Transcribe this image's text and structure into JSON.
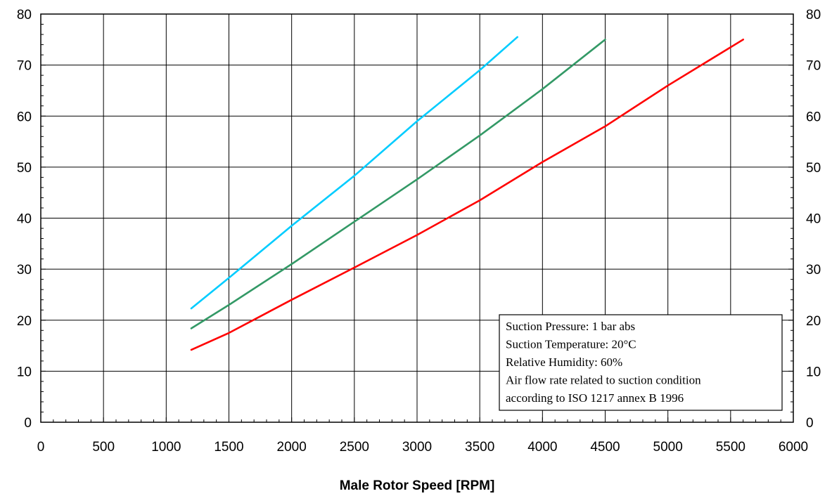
{
  "chart_data": {
    "type": "line",
    "title": "",
    "xlabel": "Male Rotor Speed [RPM]",
    "ylabel": "",
    "xlim": [
      0,
      6000
    ],
    "ylim": [
      0,
      80
    ],
    "x_ticks": [
      "0",
      "500",
      "1000",
      "1500",
      "2000",
      "2500",
      "3000",
      "3500",
      "4000",
      "4500",
      "5000",
      "5500",
      "6000"
    ],
    "y_ticks": [
      "0",
      "10",
      "20",
      "30",
      "40",
      "50",
      "60",
      "70",
      "80"
    ],
    "grid": true,
    "legend": "none",
    "series": [
      {
        "color": "#00ccff",
        "x": [
          1200,
          1500,
          2000,
          2500,
          3000,
          3500,
          3800
        ],
        "y": [
          22.3,
          28.3,
          38.5,
          48.3,
          59.0,
          69.0,
          75.5
        ]
      },
      {
        "color": "#339966",
        "x": [
          1200,
          1500,
          2000,
          2500,
          3000,
          3500,
          4000,
          4500
        ],
        "y": [
          18.4,
          23.0,
          31.0,
          39.3,
          47.6,
          56.2,
          65.3,
          75.0
        ]
      },
      {
        "color": "#ff0000",
        "x": [
          1200,
          1500,
          2000,
          2500,
          3000,
          3500,
          4000,
          4500,
          5000,
          5600
        ],
        "y": [
          14.2,
          17.5,
          24.0,
          30.3,
          36.7,
          43.5,
          51.0,
          58.0,
          66.0,
          75.0
        ]
      }
    ],
    "annotation": {
      "lines": [
        "Suction Pressure: 1 bar abs",
        "Suction Temperature:  20°C",
        "Relative Humidity: 60%",
        "Air flow rate related to suction condition",
        "according to ISO 1217 annex B 1996"
      ]
    }
  }
}
